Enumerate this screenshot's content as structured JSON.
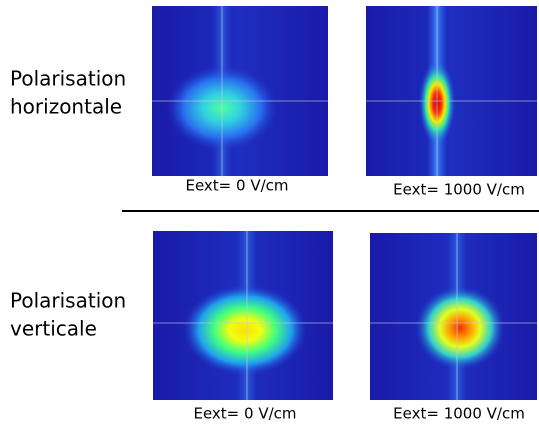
{
  "rows": [
    {
      "label": [
        "Polarisation",
        "horizontale"
      ],
      "panels": [
        {
          "caption": "Eext= 0 V/cm"
        },
        {
          "caption": "Eext= 1000 V/cm"
        }
      ]
    },
    {
      "label": [
        "Polarisation",
        "verticale"
      ],
      "panels": [
        {
          "caption": "Eext= 0 V/cm"
        },
        {
          "caption": "Eext= 1000 V/cm"
        }
      ]
    }
  ]
}
